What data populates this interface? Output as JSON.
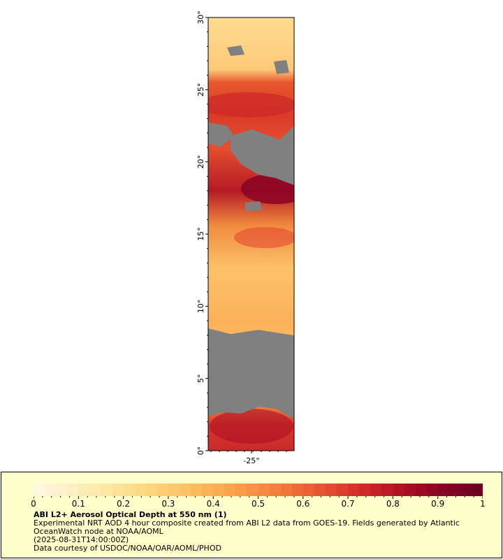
{
  "map": {
    "y_axis": {
      "labels": [
        "0°",
        "5°",
        "10°",
        "15°",
        "20°",
        "25°",
        "30°"
      ]
    },
    "x_axis": {
      "labels": [
        "-25°"
      ]
    },
    "land_color": "#808080"
  },
  "legend": {
    "min": 0,
    "max": 1,
    "tick_labels": [
      "0",
      "0.1",
      "0.2",
      "0.3",
      "0.4",
      "0.5",
      "0.6",
      "0.7",
      "0.8",
      "0.9",
      "1"
    ],
    "colors": [
      "#fff8e0",
      "#feefc0",
      "#fee49e",
      "#fed67f",
      "#fdc266",
      "#fcaa52",
      "#f98e44",
      "#f06d3a",
      "#e44a31",
      "#cd2628",
      "#ac0f24",
      "#8a0323",
      "#6e0020"
    ],
    "title": "ABI L2+ Aerosol Optical Depth at 550 nm (1)",
    "description": "Experimental NRT AOD 4 hour composite created from ABI L2 data from GOES-19. Fields generated by Atlantic OceanWatch node at NOAA/AOML",
    "timestamp": "(2025-08-31T14:00:00Z)",
    "credit": "Data courtesy of USDOC/NOAA/OAR/AOML/PHOD"
  }
}
